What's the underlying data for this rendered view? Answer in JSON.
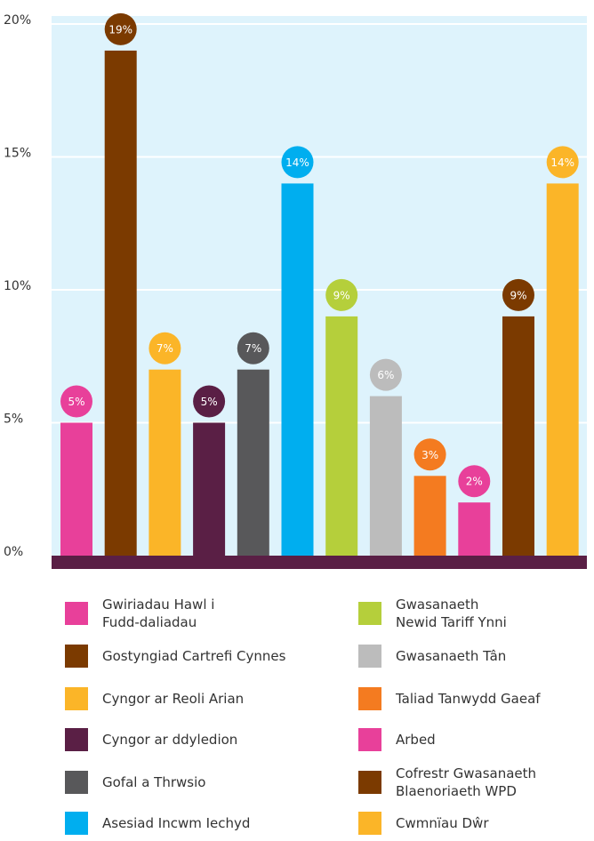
{
  "chart_data": {
    "type": "bar",
    "categories": [
      "Gwiriadau Hawl i\nFudd-daliadau",
      "Gostyngiad Cartrefi Cynnes",
      "Cyngor ar Reoli Arian",
      "Cyngor ar ddyledion",
      "Gofal a Thrwsio",
      "Asesiad Incwm Iechyd",
      "Gwasanaeth\nNewid Tariff Ynni",
      "Gwasanaeth Tân",
      "Taliad Tanwydd Gaeaf",
      "Arbed",
      "Cofrestr Gwasanaeth\nBlaenoriaeth WPD",
      "Cwmnïau Dŵr"
    ],
    "values": [
      5,
      19,
      7,
      5,
      7,
      14,
      9,
      6,
      3,
      2,
      9,
      14
    ],
    "value_labels": [
      "5%",
      "19%",
      "7%",
      "5%",
      "7%",
      "14%",
      "9%",
      "6%",
      "3%",
      "2%",
      "9%",
      "14%"
    ],
    "colors": [
      "#e8409a",
      "#7b3a00",
      "#fbb528",
      "#5a1f45",
      "#58585a",
      "#00aeef",
      "#b5cf3b",
      "#bcbcbc",
      "#f47b20",
      "#e8409a",
      "#7b3a00",
      "#fbb528"
    ],
    "ylim": [
      0,
      20
    ],
    "yticks": [
      {
        "value": 0,
        "label": "0%"
      },
      {
        "value": 5,
        "label": "5%"
      },
      {
        "value": 10,
        "label": "10%"
      },
      {
        "value": 15,
        "label": "15%"
      },
      {
        "value": 20,
        "label": "20%"
      }
    ],
    "grid": true
  }
}
